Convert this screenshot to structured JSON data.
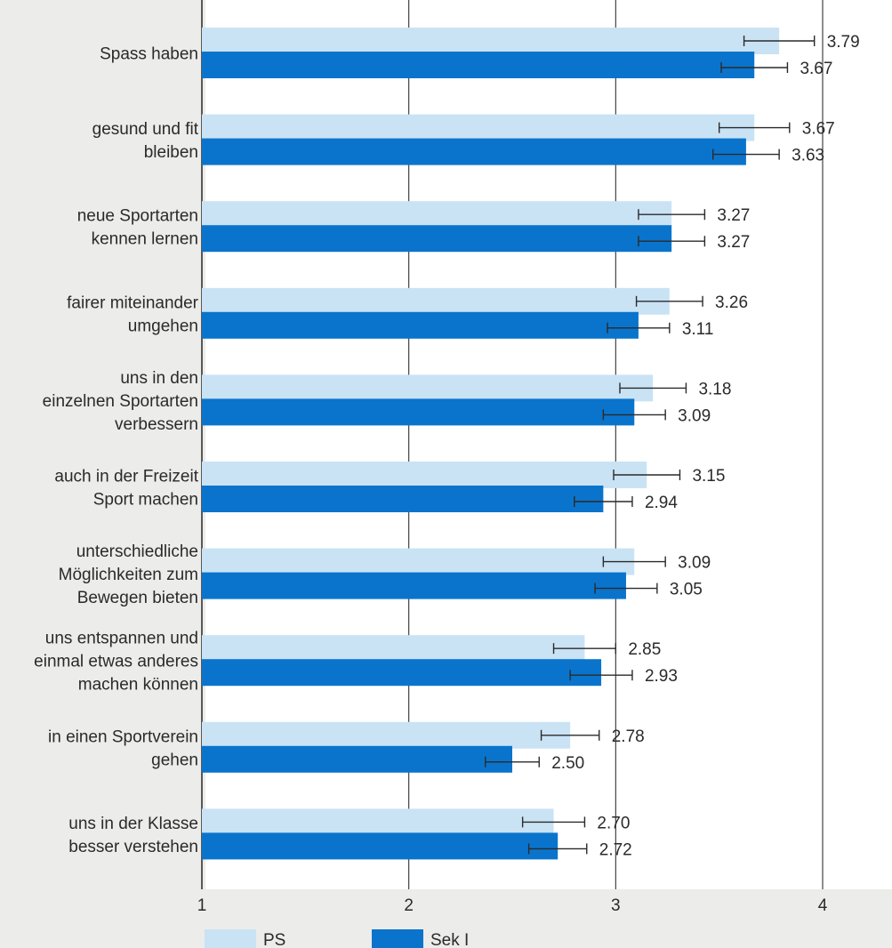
{
  "chart_data": {
    "type": "bar",
    "orientation": "horizontal",
    "categories": [
      [
        "Spass haben"
      ],
      [
        "gesund und fit",
        "bleiben"
      ],
      [
        "neue Sportarten",
        "kennen lernen"
      ],
      [
        "fairer miteinander",
        "umgehen"
      ],
      [
        "uns in den",
        "einzelnen Sportarten",
        "verbessern"
      ],
      [
        "auch in der Freizeit",
        "Sport machen"
      ],
      [
        "unterschiedliche",
        "Möglichkeiten zum",
        "Bewegen bieten"
      ],
      [
        "uns entspannen und",
        "einmal etwas anderes",
        "machen können"
      ],
      [
        "in einen Sportverein",
        "gehen"
      ],
      [
        "uns in der Klasse",
        "besser verstehen"
      ]
    ],
    "series": [
      {
        "name": "PS",
        "color": "#c9e3f5",
        "values": [
          3.79,
          3.67,
          3.27,
          3.26,
          3.18,
          3.15,
          3.09,
          2.85,
          2.78,
          2.7
        ],
        "labels": [
          "3.79",
          "3.67",
          "3.27",
          "3.26",
          "3.18",
          "3.15",
          "3.09",
          "2.85",
          "2.78",
          "2.70"
        ],
        "err_low": [
          3.62,
          3.5,
          3.11,
          3.1,
          3.02,
          2.99,
          2.94,
          2.7,
          2.64,
          2.55
        ],
        "err_high": [
          3.96,
          3.84,
          3.43,
          3.42,
          3.34,
          3.31,
          3.24,
          3.0,
          2.92,
          2.85
        ]
      },
      {
        "name": "Sek I",
        "color": "#0a74cc",
        "values": [
          3.67,
          3.63,
          3.27,
          3.11,
          3.09,
          2.94,
          3.05,
          2.93,
          2.5,
          2.72
        ],
        "labels": [
          "3.67",
          "3.63",
          "3.27",
          "3.11",
          "3.09",
          "2.94",
          "3.05",
          "2.93",
          "2.50",
          "2.72"
        ],
        "err_low": [
          3.51,
          3.47,
          3.11,
          2.96,
          2.94,
          2.8,
          2.9,
          2.78,
          2.37,
          2.58
        ],
        "err_high": [
          3.83,
          3.79,
          3.43,
          3.26,
          3.24,
          3.08,
          3.2,
          3.08,
          2.63,
          2.86
        ]
      }
    ],
    "x_ticks": [
      "1",
      "2",
      "3",
      "4"
    ],
    "xlim": [
      1,
      4
    ],
    "grid": true,
    "legend_position": "bottom-left",
    "colors": {
      "background": "#ececea",
      "plot_background": "#ffffff",
      "grid": "#333333",
      "text": "#2a2a2a"
    }
  }
}
